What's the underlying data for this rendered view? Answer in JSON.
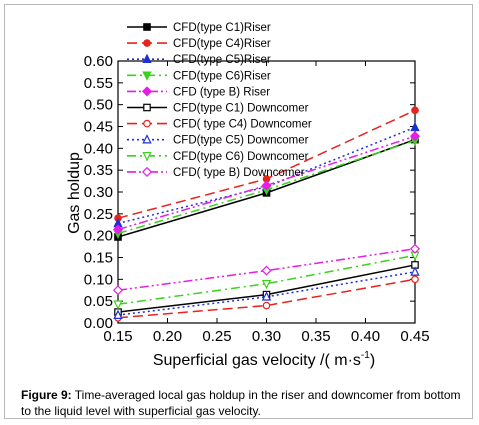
{
  "chart_data": {
    "type": "line",
    "title": "",
    "xlabel": "Superficial gas velocity /( m·s",
    "xlabel_sup": "-1",
    "xlabel_end": ")",
    "ylabel": "Gas holdup",
    "x": [
      0.15,
      0.3,
      0.45
    ],
    "xlim": [
      0.15,
      0.45
    ],
    "ylim": [
      0.0,
      0.6
    ],
    "x_ticks": [
      "0.15",
      "0.20",
      "0.25",
      "0.30",
      "0.35",
      "0.40",
      "0.45"
    ],
    "y_ticks": [
      "0.00",
      "0.05",
      "0.10",
      "0.15",
      "0.20",
      "0.25",
      "0.30",
      "0.35",
      "0.40",
      "0.45",
      "0.50",
      "0.55",
      "0.60"
    ],
    "grid": false,
    "legend_position": "top-left",
    "series": [
      {
        "name": "CFD(type C1)Riser",
        "values": [
          0.197,
          0.298,
          0.42
        ],
        "color": "#000000",
        "dash": "solid",
        "marker": "square-filled"
      },
      {
        "name": "CFD(type C4)Riser",
        "values": [
          0.24,
          0.33,
          0.487
        ],
        "color": "#e8231d",
        "dash": "dash",
        "marker": "circle-filled"
      },
      {
        "name": "CFD(type C5)Riser",
        "values": [
          0.228,
          0.312,
          0.448
        ],
        "color": "#1f2fd6",
        "dash": "dot",
        "marker": "triangle-filled"
      },
      {
        "name": "CFD(type C6)Riser",
        "values": [
          0.205,
          0.305,
          0.418
        ],
        "color": "#3bd11d",
        "dash": "dashdot",
        "marker": "triangle-down-filled"
      },
      {
        "name": "CFD (type B) Riser",
        "values": [
          0.214,
          0.315,
          0.428
        ],
        "color": "#e61de6",
        "dash": "dashdotdot",
        "marker": "diamond-filled"
      },
      {
        "name": "CFD(type C1) Downcomer",
        "values": [
          0.025,
          0.065,
          0.133
        ],
        "color": "#000000",
        "dash": "solid",
        "marker": "square-open"
      },
      {
        "name": "CFD( type C4) Downcomer",
        "values": [
          0.012,
          0.04,
          0.1
        ],
        "color": "#e8231d",
        "dash": "dash",
        "marker": "circle-open"
      },
      {
        "name": "CFD(type C5) Downcomer",
        "values": [
          0.018,
          0.06,
          0.117
        ],
        "color": "#1f2fd6",
        "dash": "dot",
        "marker": "triangle-open"
      },
      {
        "name": "CFD(type C6) Downcomer",
        "values": [
          0.043,
          0.09,
          0.155
        ],
        "color": "#3bd11d",
        "dash": "dashdot",
        "marker": "triangle-down-open"
      },
      {
        "name": "CFD( type B)  Downcomer",
        "values": [
          0.075,
          0.12,
          0.17
        ],
        "color": "#e61de6",
        "dash": "dashdotdot",
        "marker": "diamond-open"
      }
    ]
  },
  "caption": {
    "label": "Figure 9:",
    "text": " Time-averaged local gas holdup in the riser and downcomer from bottom to the liquid level with superficial gas velocity."
  }
}
